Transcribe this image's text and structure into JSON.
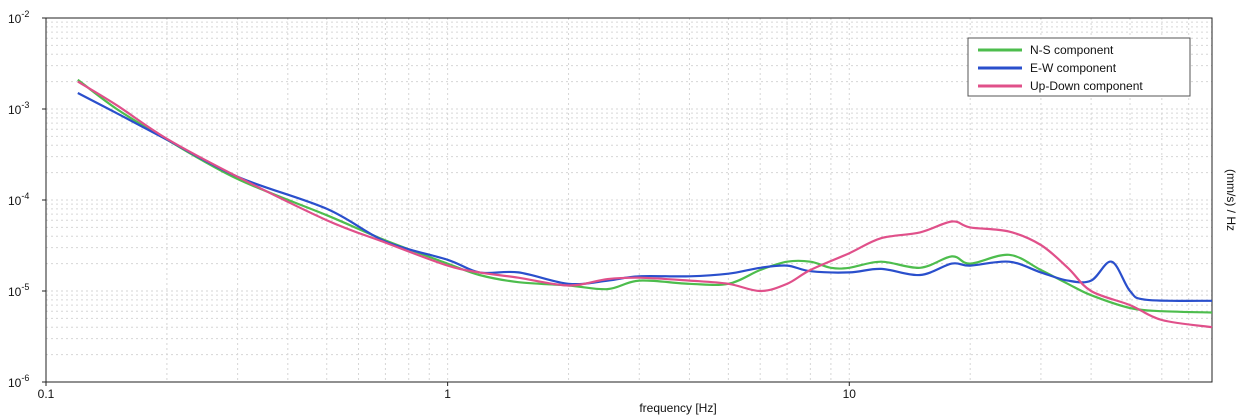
{
  "chart_data": {
    "type": "line",
    "title": "",
    "xlabel": "frequency [Hz]",
    "ylabel": "(mm/s) / Hz",
    "x_scale": "log",
    "y_scale": "log",
    "xlim": [
      0.1,
      80
    ],
    "ylim": [
      1e-06,
      0.01
    ],
    "grid": true,
    "legend_position": "top-right",
    "x_ticks": [
      {
        "value": 0.1,
        "label": "0.1"
      },
      {
        "value": 1,
        "label": "1"
      },
      {
        "value": 10,
        "label": "10"
      }
    ],
    "y_ticks": [
      {
        "value": 0.01,
        "base": "10",
        "exp": "-2"
      },
      {
        "value": 0.001,
        "base": "10",
        "exp": "-3"
      },
      {
        "value": 0.0001,
        "base": "10",
        "exp": "-4"
      },
      {
        "value": 1e-05,
        "base": "10",
        "exp": "-5"
      },
      {
        "value": 1e-06,
        "base": "10",
        "exp": "-6"
      }
    ],
    "series": [
      {
        "name": "N-S component",
        "color": "#4dbd4d",
        "points": [
          [
            0.12,
            0.0021
          ],
          [
            0.15,
            0.001
          ],
          [
            0.2,
            0.00046
          ],
          [
            0.3,
            0.00017
          ],
          [
            0.5,
            6.8e-05
          ],
          [
            0.7,
            3.6e-05
          ],
          [
            1.0,
            2e-05
          ],
          [
            1.2,
            1.5e-05
          ],
          [
            1.5,
            1.25e-05
          ],
          [
            2.0,
            1.15e-05
          ],
          [
            2.5,
            1.05e-05
          ],
          [
            3.0,
            1.3e-05
          ],
          [
            4.0,
            1.2e-05
          ],
          [
            5.0,
            1.2e-05
          ],
          [
            6.0,
            1.7e-05
          ],
          [
            7.0,
            2.1e-05
          ],
          [
            8.0,
            2.1e-05
          ],
          [
            9.0,
            1.8e-05
          ],
          [
            10.0,
            1.8e-05
          ],
          [
            12.0,
            2.1e-05
          ],
          [
            15.0,
            1.8e-05
          ],
          [
            18.0,
            2.4e-05
          ],
          [
            20.0,
            2e-05
          ],
          [
            25.0,
            2.5e-05
          ],
          [
            30.0,
            1.7e-05
          ],
          [
            35.0,
            1.2e-05
          ],
          [
            40.0,
            9e-06
          ],
          [
            50.0,
            6.5e-06
          ],
          [
            60.0,
            6e-06
          ],
          [
            80.0,
            5.8e-06
          ]
        ]
      },
      {
        "name": "E-W component",
        "color": "#2a4fcc",
        "points": [
          [
            0.12,
            0.0015
          ],
          [
            0.15,
            0.0009
          ],
          [
            0.2,
            0.00046
          ],
          [
            0.3,
            0.00018
          ],
          [
            0.5,
            8e-05
          ],
          [
            0.7,
            3.5e-05
          ],
          [
            1.0,
            2.2e-05
          ],
          [
            1.2,
            1.6e-05
          ],
          [
            1.5,
            1.6e-05
          ],
          [
            2.0,
            1.2e-05
          ],
          [
            2.5,
            1.3e-05
          ],
          [
            3.0,
            1.45e-05
          ],
          [
            4.0,
            1.45e-05
          ],
          [
            5.0,
            1.55e-05
          ],
          [
            6.0,
            1.8e-05
          ],
          [
            7.0,
            1.9e-05
          ],
          [
            8.0,
            1.65e-05
          ],
          [
            10.0,
            1.6e-05
          ],
          [
            12.0,
            1.75e-05
          ],
          [
            15.0,
            1.5e-05
          ],
          [
            18.0,
            2e-05
          ],
          [
            20.0,
            1.9e-05
          ],
          [
            25.0,
            2.1e-05
          ],
          [
            30.0,
            1.6e-05
          ],
          [
            35.0,
            1.3e-05
          ],
          [
            40.0,
            1.3e-05
          ],
          [
            45.0,
            2.1e-05
          ],
          [
            50.0,
            1e-05
          ],
          [
            55.0,
            8e-06
          ],
          [
            80.0,
            7.8e-06
          ]
        ]
      },
      {
        "name": "Up-Down component",
        "color": "#e0508a",
        "points": [
          [
            0.12,
            0.002
          ],
          [
            0.15,
            0.0011
          ],
          [
            0.2,
            0.00047
          ],
          [
            0.3,
            0.00018
          ],
          [
            0.5,
            6e-05
          ],
          [
            0.7,
            3.4e-05
          ],
          [
            1.0,
            1.9e-05
          ],
          [
            1.2,
            1.6e-05
          ],
          [
            1.5,
            1.4e-05
          ],
          [
            2.0,
            1.15e-05
          ],
          [
            2.5,
            1.35e-05
          ],
          [
            3.0,
            1.4e-05
          ],
          [
            4.0,
            1.3e-05
          ],
          [
            5.0,
            1.2e-05
          ],
          [
            6.0,
            1e-05
          ],
          [
            7.0,
            1.2e-05
          ],
          [
            8.0,
            1.7e-05
          ],
          [
            10.0,
            2.6e-05
          ],
          [
            12.0,
            3.8e-05
          ],
          [
            15.0,
            4.4e-05
          ],
          [
            18.0,
            5.8e-05
          ],
          [
            20.0,
            5e-05
          ],
          [
            25.0,
            4.5e-05
          ],
          [
            30.0,
            3.2e-05
          ],
          [
            35.0,
            1.8e-05
          ],
          [
            40.0,
            1e-05
          ],
          [
            50.0,
            7e-06
          ],
          [
            60.0,
            4.8e-06
          ],
          [
            80.0,
            4e-06
          ]
        ]
      }
    ]
  }
}
